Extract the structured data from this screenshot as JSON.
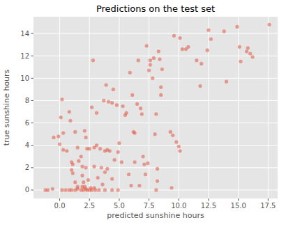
{
  "chart_data": {
    "type": "scatter",
    "title": "Predictions on the test set",
    "x_label": "predicted sunshine hours",
    "y_label": "true sunshine hours",
    "color": "#E24A33",
    "marker": "circle",
    "grid": true,
    "xlim": [
      -2.2,
      18.3
    ],
    "ylim": [
      -0.75,
      15.5
    ],
    "xticks": [
      {
        "value": 0,
        "label": "0.0"
      },
      {
        "value": 2.5,
        "label": "2.5"
      },
      {
        "value": 5,
        "label": "5.0"
      },
      {
        "value": 7.5,
        "label": "7.5"
      },
      {
        "value": 10,
        "label": "10.0"
      },
      {
        "value": 12.5,
        "label": "12.5"
      },
      {
        "value": 15,
        "label": "15.0"
      },
      {
        "value": 17.5,
        "label": "17.5"
      }
    ],
    "yticks": [
      0,
      2,
      4,
      6,
      8,
      10,
      12,
      14
    ],
    "x": [
      -1.2,
      -1.0,
      -0.6,
      0.2,
      0.5,
      0.8,
      1.0,
      1.3,
      1.5,
      1.8,
      2.0,
      2.2,
      2.3,
      2.5,
      2.7,
      3.0,
      3.3,
      3.8,
      4.4,
      4.9,
      6.0,
      8.1,
      9.4,
      2.1,
      1.9,
      2.6,
      2.9,
      -0.5,
      -0.1,
      0,
      0.1,
      0.2,
      0.3,
      0.6,
      0.3,
      0.8,
      0.9,
      1.0,
      1.1,
      1.0,
      1.1,
      1.3,
      1.3,
      1.5,
      1.6,
      1.8,
      1.9,
      1.9,
      2.0,
      2.1,
      2.2,
      2.2,
      2.4,
      2.5,
      2.7,
      2.8,
      2.9,
      2.9,
      3.1,
      3.2,
      3.4,
      3.5,
      3.7,
      3.8,
      3.8,
      3.9,
      4.0,
      4.0,
      4.1,
      4.2,
      4.4,
      4.4,
      4.5,
      4.6,
      4.8,
      4.9,
      5.0,
      5.2,
      5.3,
      5.5,
      5.6,
      5.8,
      5.9,
      6.1,
      6.2,
      6.3,
      6.3,
      6.5,
      6.6,
      6.8,
      6.9,
      7.0,
      7.1,
      7.3,
      7.5,
      7.6,
      7.6,
      7.8,
      7.9,
      8.1,
      8.0,
      7.4,
      7.2,
      6.7,
      8.2,
      8.2,
      8.3,
      8.4,
      8.5,
      8.5,
      8.6,
      9.3,
      9.5,
      9.6,
      9.8,
      10.0,
      10.1,
      10.1,
      10.3,
      10.6,
      10.8,
      11.5,
      11.8,
      11.9,
      12.4,
      12.5,
      12.7,
      13.8,
      14.0,
      14.9,
      15.1,
      15.2,
      15.7,
      15.8,
      16.0,
      16.2,
      17.6,
      2.3,
      1.5,
      3.6,
      3.1
    ],
    "y": [
      0,
      0,
      0.1,
      0,
      0,
      0,
      0,
      0,
      0.1,
      0,
      0,
      0.1,
      0,
      0,
      0,
      0,
      0,
      0,
      0,
      0,
      0.4,
      0,
      0.2,
      0.3,
      0.3,
      0.2,
      0.2,
      4.7,
      4.8,
      4.1,
      6.5,
      8.1,
      5.1,
      3.5,
      3.6,
      7.0,
      6.2,
      2.5,
      2.3,
      1.8,
      1.5,
      5.2,
      0.7,
      3.8,
      2.6,
      3.0,
      2.1,
      1.3,
      0.7,
      5.3,
      4.7,
      2.0,
      0.9,
      3.7,
      7.4,
      11.6,
      3.8,
      2.1,
      6.9,
      1.1,
      3.7,
      2.0,
      8.0,
      3.5,
      1.6,
      9.4,
      1.9,
      3.6,
      7.9,
      3.5,
      7.8,
      1.0,
      9.0,
      2.7,
      7.6,
      3.4,
      4.2,
      2.5,
      7.5,
      6.7,
      6.9,
      1.4,
      10.5,
      8.5,
      5.2,
      5.1,
      2.5,
      7.7,
      11.6,
      7.3,
      6.8,
      3.0,
      2.3,
      12.9,
      10.7,
      11.2,
      11.6,
      10.0,
      11.8,
      6.8,
      5.0,
      2.4,
      1.4,
      0.4,
      1.9,
      0.8,
      12.4,
      11.7,
      8.5,
      9.2,
      10.8,
      5.2,
      4.9,
      13.8,
      4.3,
      3.9,
      3.5,
      13.6,
      12.6,
      12.6,
      12.8,
      11.6,
      9.3,
      11.3,
      12.5,
      14.3,
      13.5,
      14.2,
      9.7,
      14.6,
      12.8,
      11.5,
      12.4,
      12.7,
      12.2,
      11.9,
      14.8,
      3.7,
      0.3,
      0.5,
      4.0
    ]
  }
}
